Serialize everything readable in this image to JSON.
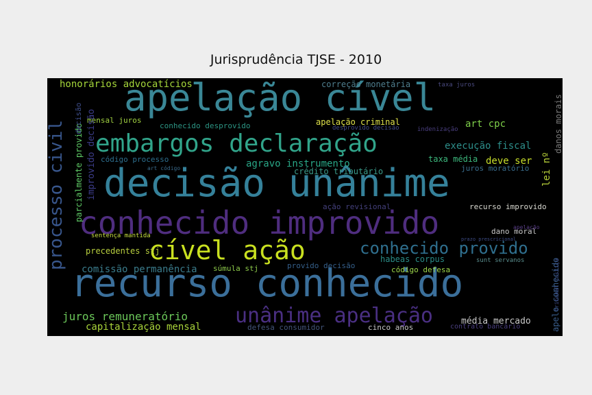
{
  "figure": {
    "title": "Jurisprudência TJSE - 2010"
  },
  "cloud": {
    "background": "#000000",
    "words": [
      {
        "text": "recurso conhecido",
        "color": "#3b6f9a"
      },
      {
        "text": "decisão unânime",
        "color": "#35819a"
      },
      {
        "text": "apelação cível",
        "color": "#3a8796"
      },
      {
        "text": "conhecido improvido",
        "color": "#4f2d7f"
      },
      {
        "text": "embargos declaração",
        "color": "#31a48a"
      },
      {
        "text": "cível ação",
        "color": "#c9e020"
      },
      {
        "text": "unânime apelação",
        "color": "#4a2f82"
      },
      {
        "text": "conhecido provido",
        "color": "#2f6f8e"
      },
      {
        "text": "processo civil",
        "color": "#38568c"
      },
      {
        "text": "honorários advocatícios",
        "color": "#a5d63a"
      },
      {
        "text": "juros remuneratório",
        "color": "#6cc85a"
      },
      {
        "text": "capitalização mensal",
        "color": "#a9d43a"
      },
      {
        "text": "comissão permanência",
        "color": "#3b7c8c"
      },
      {
        "text": "agravo instrumento",
        "color": "#29a787"
      },
      {
        "text": "execução fiscal",
        "color": "#2d8f8b"
      },
      {
        "text": "taxa média",
        "color": "#3cb77c"
      },
      {
        "text": "deve ser",
        "color": "#c9df2a"
      },
      {
        "text": "art cpc",
        "color": "#7fd04a"
      },
      {
        "text": "lei nº",
        "color": "#bcd53a"
      },
      {
        "text": "mensal juros",
        "color": "#a3d442"
      },
      {
        "text": "apelação criminal",
        "color": "#e0e34a"
      },
      {
        "text": "conhecido desprovido",
        "color": "#2c9483"
      },
      {
        "text": "improvido decisão",
        "color": "#3d3d8a"
      },
      {
        "text": "parcialmente provido",
        "color": "#5ec865"
      },
      {
        "text": "decisão",
        "color": "#3f4f8c"
      },
      {
        "text": "código processo",
        "color": "#2e6f8e"
      },
      {
        "text": "crédito tributário",
        "color": "#3a9a8a"
      },
      {
        "text": "juros moratório",
        "color": "#3a6e8e"
      },
      {
        "text": "correção monetária",
        "color": "#4f7f8f"
      },
      {
        "text": "recurso improvido",
        "color": "#d8d8d0"
      },
      {
        "text": "dano moral",
        "color": "#c8c8c8"
      },
      {
        "text": "danos morais",
        "color": "#7a7a7a"
      },
      {
        "text": "habeas corpus",
        "color": "#2a8b86"
      },
      {
        "text": "súmula stj",
        "color": "#8dc94a"
      },
      {
        "text": "código defesa",
        "color": "#9dd64a"
      },
      {
        "text": "provido decisão",
        "color": "#355f8a"
      },
      {
        "text": "precedentes stj",
        "color": "#b8cf3e"
      },
      {
        "text": "média mercado",
        "color": "#c8c8c8"
      },
      {
        "text": "defesa consumidor",
        "color": "#44557a"
      },
      {
        "text": "cinco anos",
        "color": "#c8c8c8"
      },
      {
        "text": "contrato bancário",
        "color": "#4a3f7f"
      },
      {
        "text": "apelo conhecido",
        "color": "#3a5f8e"
      },
      {
        "text": "ação revisional",
        "color": "#44407c"
      },
      {
        "text": "sentença mantida",
        "color": "#c8e040"
      },
      {
        "text": "art código",
        "color": "#3a6a8a"
      },
      {
        "text": "indenização",
        "color": "#4a3f7f"
      },
      {
        "text": "desprovido decisão",
        "color": "#404a88"
      },
      {
        "text": "taxa juros",
        "color": "#4a4a7f"
      },
      {
        "text": "tribunal justiça",
        "color": "#3e4d88"
      },
      {
        "text": "sunt servanos",
        "color": "#5a8e8e"
      },
      {
        "text": "prazo prescricional",
        "color": "#3e4d88"
      },
      {
        "text": "apelação",
        "color": "#5a3f88"
      }
    ]
  }
}
